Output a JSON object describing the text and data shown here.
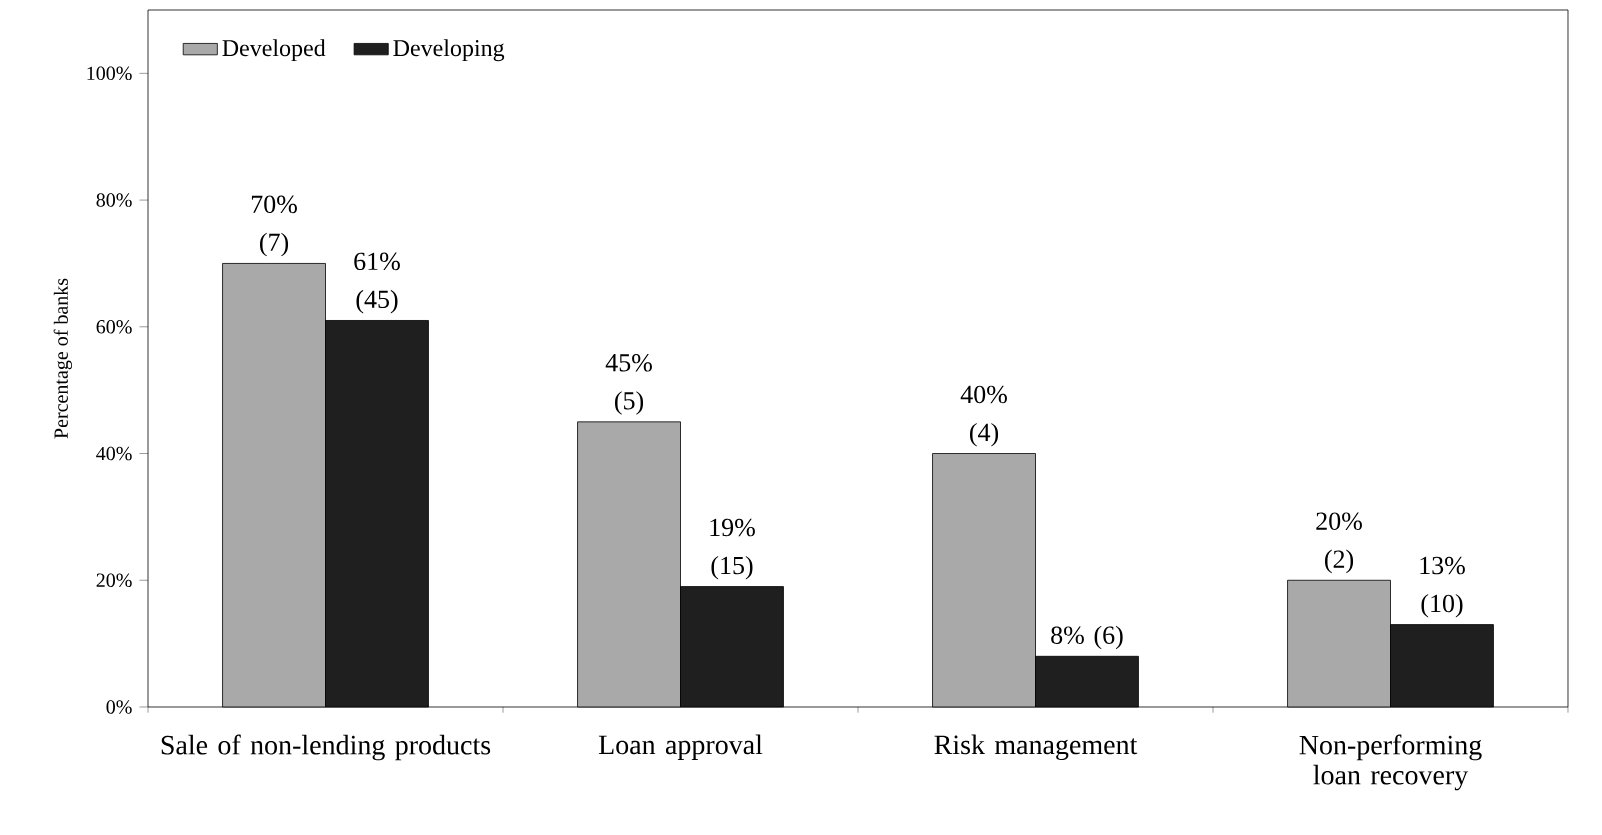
{
  "chart_data": {
    "type": "bar",
    "ylabel": "Percentage of banks",
    "categories": [
      "Sale of non-lending products",
      "Loan approval",
      "Risk management",
      "Non-performing loan recovery"
    ],
    "series": [
      {
        "name": "Developed",
        "color": "#a9a9a9",
        "values": [
          70,
          45,
          40,
          20
        ],
        "value_labels": [
          "70% (7)",
          "45% (5)",
          "40% (4)",
          "20% (2)"
        ]
      },
      {
        "name": "Developing",
        "color": "#1f1f1f",
        "values": [
          61,
          19,
          8,
          13
        ],
        "value_labels": [
          "61% (45)",
          "19% (15)",
          "8% (6)",
          "13% (10)"
        ]
      }
    ],
    "ylim": [
      0,
      110
    ],
    "yticks": [
      {
        "value": 0,
        "label": "0%"
      },
      {
        "value": 20,
        "label": "20%"
      },
      {
        "value": 40,
        "label": "40%"
      },
      {
        "value": 60,
        "label": "60%"
      },
      {
        "value": 80,
        "label": "80%"
      },
      {
        "value": 100,
        "label": "100%"
      }
    ],
    "legend": "top left"
  }
}
